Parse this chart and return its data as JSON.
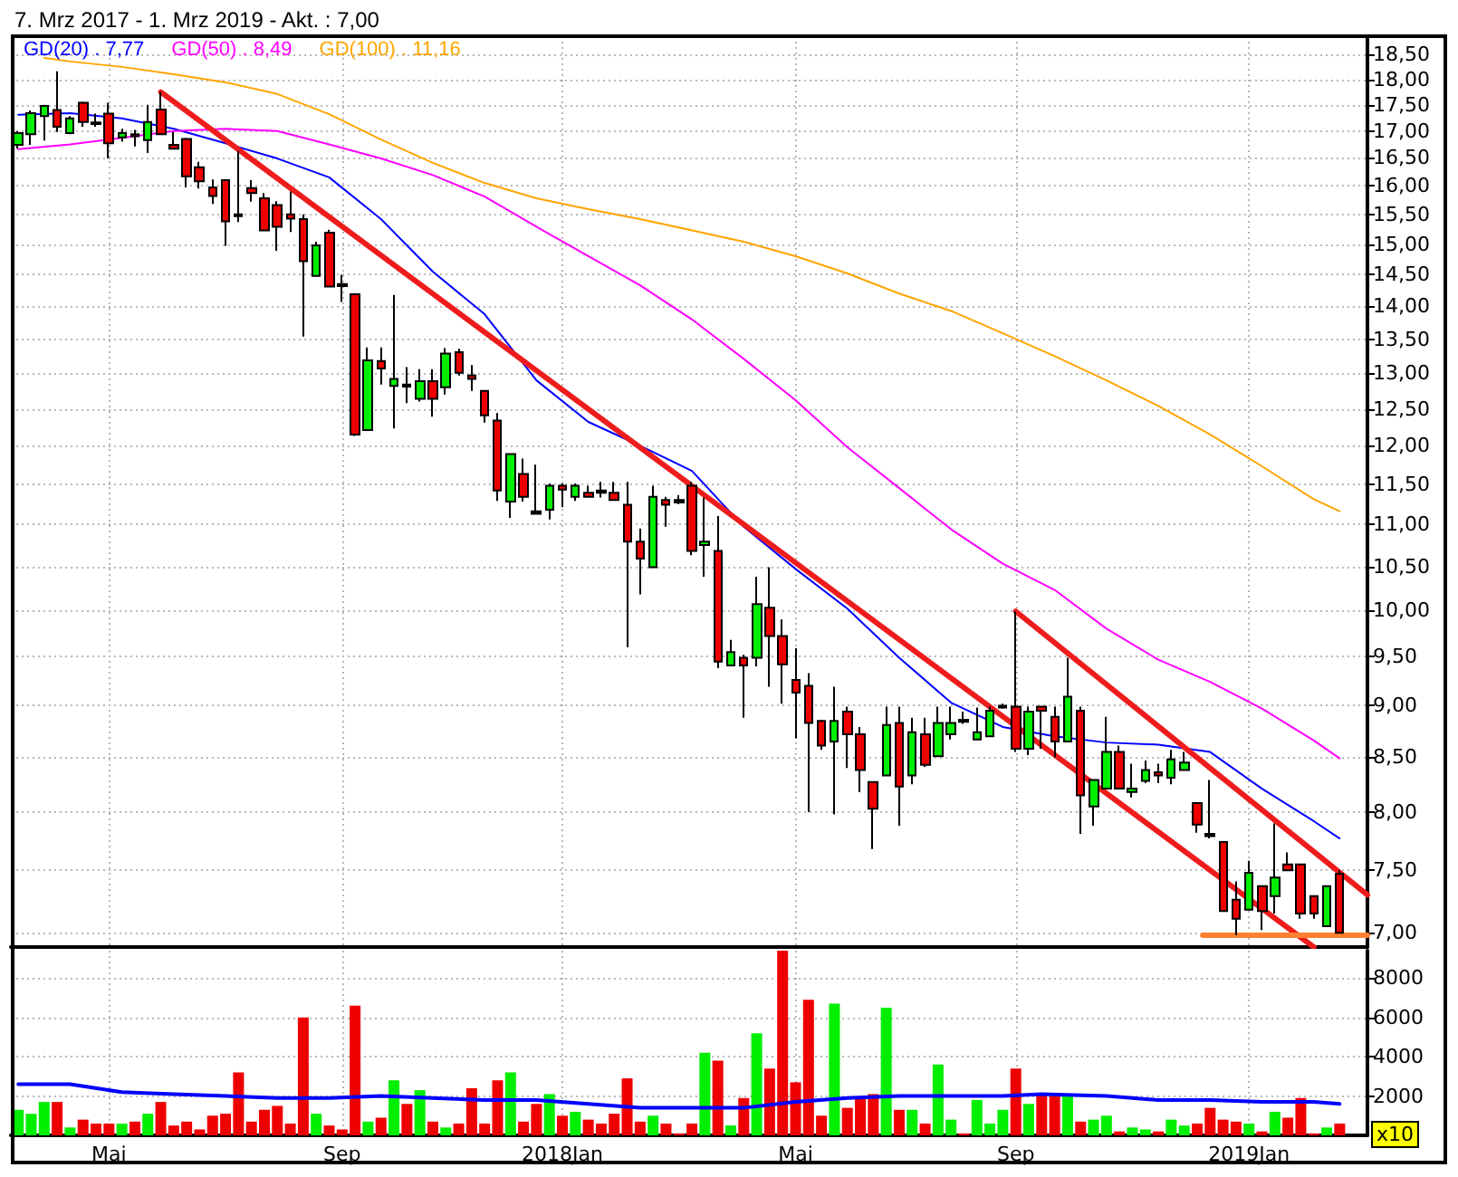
{
  "chart_data": [
    {
      "type": "candlestick",
      "title": "7. Mrz 2017 - 1. Mrz 2019 - Akt. : 7,00",
      "x": [
        "2017-03-13",
        "2017-03-20",
        "2017-03-27",
        "2017-04-03",
        "2017-04-10",
        "2017-04-17",
        "2017-04-24",
        "2017-05-01",
        "2017-05-08",
        "2017-05-15",
        "2017-05-22",
        "2017-05-29",
        "2017-06-05",
        "2017-06-12",
        "2017-06-19",
        "2017-06-26",
        "2017-07-03",
        "2017-07-10",
        "2017-07-17",
        "2017-07-24",
        "2017-07-31",
        "2017-08-07",
        "2017-08-14",
        "2017-08-21",
        "2017-08-28",
        "2017-09-04",
        "2017-09-11",
        "2017-09-18",
        "2017-09-25",
        "2017-10-02",
        "2017-10-09",
        "2017-10-16",
        "2017-10-23",
        "2017-10-30",
        "2017-11-06",
        "2017-11-13",
        "2017-11-20",
        "2017-11-27",
        "2017-12-04",
        "2017-12-11",
        "2017-12-18",
        "2017-12-25",
        "2018-01-01",
        "2018-01-08",
        "2018-01-15",
        "2018-01-22",
        "2018-01-29",
        "2018-02-05",
        "2018-02-12",
        "2018-02-19",
        "2018-02-26",
        "2018-03-05",
        "2018-03-12",
        "2018-03-19",
        "2018-03-26",
        "2018-04-02",
        "2018-04-09",
        "2018-04-16",
        "2018-04-23",
        "2018-04-30",
        "2018-05-07",
        "2018-05-14",
        "2018-05-21",
        "2018-05-28",
        "2018-06-04",
        "2018-06-11",
        "2018-06-18",
        "2018-06-25",
        "2018-07-02",
        "2018-07-09",
        "2018-07-16",
        "2018-07-23",
        "2018-07-30",
        "2018-08-06",
        "2018-08-13",
        "2018-08-20",
        "2018-08-27",
        "2018-09-03",
        "2018-09-10",
        "2018-09-17",
        "2018-09-24",
        "2018-10-01",
        "2018-10-08",
        "2018-10-15",
        "2018-10-22",
        "2018-10-29",
        "2018-11-05",
        "2018-11-12",
        "2018-11-19",
        "2018-11-26",
        "2018-12-03",
        "2018-12-10",
        "2018-12-17",
        "2018-12-24",
        "2018-12-31",
        "2019-01-07",
        "2019-01-14",
        "2019-01-21",
        "2019-01-28",
        "2019-02-04",
        "2019-02-11",
        "2019-02-18",
        "2019-02-25"
      ],
      "ohlc": [
        [
          16.74,
          17.0,
          16.67,
          16.96
        ],
        [
          16.94,
          17.39,
          16.74,
          17.34
        ],
        [
          17.28,
          17.5,
          16.82,
          17.48
        ],
        [
          17.4,
          18.16,
          16.98,
          17.08
        ],
        [
          16.96,
          17.28,
          16.94,
          17.24
        ],
        [
          17.54,
          17.56,
          17.08,
          17.17
        ],
        [
          17.16,
          17.33,
          17.08,
          17.13
        ],
        [
          17.33,
          17.54,
          16.49,
          16.77
        ],
        [
          16.88,
          17.04,
          16.8,
          16.96
        ],
        [
          16.94,
          17.02,
          16.71,
          16.9
        ],
        [
          16.83,
          17.5,
          16.59,
          17.17
        ],
        [
          17.41,
          17.75,
          16.94,
          16.94
        ],
        [
          16.74,
          16.98,
          16.67,
          16.67
        ],
        [
          16.85,
          16.87,
          15.97,
          16.17
        ],
        [
          16.33,
          16.43,
          15.95,
          16.08
        ],
        [
          15.97,
          16.11,
          15.68,
          15.82
        ],
        [
          16.1,
          16.1,
          14.97,
          15.38
        ],
        [
          15.5,
          16.63,
          15.37,
          15.47
        ],
        [
          15.96,
          16.1,
          15.72,
          15.87
        ],
        [
          15.78,
          15.87,
          15.23,
          15.23
        ],
        [
          15.66,
          15.73,
          14.89,
          15.29
        ],
        [
          15.5,
          15.9,
          15.2,
          15.43
        ],
        [
          15.42,
          15.5,
          13.54,
          14.72
        ],
        [
          14.48,
          15.04,
          14.47,
          14.98
        ],
        [
          15.19,
          15.24,
          14.3,
          14.31
        ],
        [
          14.35,
          14.5,
          14.07,
          14.32
        ],
        [
          14.19,
          14.19,
          12.13,
          12.15
        ],
        [
          12.21,
          13.38,
          12.21,
          13.19
        ],
        [
          13.18,
          13.38,
          12.84,
          13.07
        ],
        [
          12.82,
          14.18,
          12.23,
          12.92
        ],
        [
          12.84,
          13.09,
          12.58,
          12.81
        ],
        [
          12.64,
          13.06,
          12.6,
          12.89
        ],
        [
          12.89,
          13.06,
          12.39,
          12.64
        ],
        [
          12.8,
          13.37,
          12.7,
          13.29
        ],
        [
          13.31,
          13.36,
          12.97,
          13.01
        ],
        [
          12.97,
          13.12,
          12.75,
          12.92
        ],
        [
          12.75,
          12.75,
          12.31,
          12.41
        ],
        [
          12.34,
          12.44,
          11.29,
          11.42
        ],
        [
          11.28,
          11.89,
          11.08,
          11.89
        ],
        [
          11.63,
          11.83,
          11.28,
          11.34
        ],
        [
          11.16,
          11.75,
          11.12,
          11.13
        ],
        [
          11.18,
          11.51,
          11.06,
          11.48
        ],
        [
          11.48,
          11.51,
          11.21,
          11.43
        ],
        [
          11.34,
          11.51,
          11.29,
          11.48
        ],
        [
          11.39,
          11.48,
          11.33,
          11.34
        ],
        [
          11.42,
          11.53,
          11.33,
          11.39
        ],
        [
          11.39,
          11.53,
          11.3,
          11.3
        ],
        [
          11.24,
          11.53,
          9.6,
          10.79
        ],
        [
          10.79,
          10.95,
          10.18,
          10.59
        ],
        [
          10.49,
          11.48,
          10.49,
          11.34
        ],
        [
          11.3,
          11.34,
          10.97,
          11.24
        ],
        [
          11.3,
          11.36,
          11.25,
          11.27
        ],
        [
          11.48,
          11.53,
          10.63,
          10.68
        ],
        [
          10.75,
          11.33,
          10.38,
          10.79
        ],
        [
          10.68,
          11.1,
          9.38,
          9.45
        ],
        [
          9.41,
          9.68,
          9.41,
          9.55
        ],
        [
          9.49,
          9.52,
          8.88,
          9.41
        ],
        [
          9.49,
          10.38,
          9.4,
          10.07
        ],
        [
          10.03,
          10.49,
          9.19,
          9.72
        ],
        [
          9.72,
          9.9,
          9.02,
          9.42
        ],
        [
          9.26,
          9.59,
          8.68,
          9.13
        ],
        [
          9.2,
          9.33,
          8.0,
          8.83
        ],
        [
          8.85,
          8.86,
          8.57,
          8.61
        ],
        [
          8.65,
          9.19,
          7.98,
          8.85
        ],
        [
          8.94,
          8.99,
          8.4,
          8.72
        ],
        [
          8.72,
          8.79,
          8.18,
          8.38
        ],
        [
          8.27,
          8.27,
          7.68,
          8.03
        ],
        [
          8.33,
          8.99,
          8.33,
          8.81
        ],
        [
          8.83,
          8.99,
          7.88,
          8.23
        ],
        [
          8.33,
          8.88,
          8.25,
          8.74
        ],
        [
          8.72,
          8.88,
          8.41,
          8.43
        ],
        [
          8.51,
          8.99,
          8.51,
          8.83
        ],
        [
          8.72,
          8.99,
          8.67,
          8.83
        ],
        [
          8.86,
          8.94,
          8.82,
          8.84
        ],
        [
          8.67,
          8.98,
          8.67,
          8.74
        ],
        [
          8.7,
          8.99,
          8.7,
          8.95
        ],
        [
          8.98,
          9.02,
          8.97,
          9.0
        ],
        [
          8.99,
          9.99,
          8.55,
          8.58
        ],
        [
          8.58,
          8.99,
          8.52,
          8.94
        ],
        [
          8.99,
          8.99,
          8.58,
          8.95
        ],
        [
          8.89,
          8.99,
          8.5,
          8.65
        ],
        [
          8.65,
          9.49,
          8.65,
          9.09
        ],
        [
          8.95,
          8.99,
          7.81,
          8.15
        ],
        [
          8.05,
          8.29,
          7.88,
          8.29
        ],
        [
          8.21,
          8.89,
          8.21,
          8.55
        ],
        [
          8.55,
          8.61,
          8.21,
          8.21
        ],
        [
          8.18,
          8.44,
          8.13,
          8.21
        ],
        [
          8.28,
          8.47,
          8.26,
          8.38
        ],
        [
          8.36,
          8.44,
          8.26,
          8.33
        ],
        [
          8.31,
          8.57,
          8.25,
          8.48
        ],
        [
          8.38,
          8.55,
          8.38,
          8.45
        ],
        [
          8.08,
          8.08,
          7.82,
          7.89
        ],
        [
          7.81,
          8.29,
          7.77,
          7.79
        ],
        [
          7.74,
          7.74,
          7.17,
          7.17
        ],
        [
          7.26,
          7.41,
          6.98,
          7.11
        ],
        [
          7.18,
          7.58,
          7.18,
          7.48
        ],
        [
          7.37,
          7.37,
          7.02,
          7.17
        ],
        [
          7.29,
          7.9,
          7.15,
          7.44
        ],
        [
          7.55,
          7.65,
          7.5,
          7.5
        ],
        [
          7.55,
          7.55,
          7.11,
          7.15
        ],
        [
          7.29,
          7.29,
          7.11,
          7.15
        ],
        [
          7.05,
          7.37,
          7.05,
          7.37
        ],
        [
          7.47,
          7.5,
          7.0,
          7.0
        ]
      ],
      "colors": [
        "#00ee00",
        "#00ee00",
        "#00ee00",
        "#ee0000",
        "#00ee00",
        "#ee0000",
        "#000000",
        "#ee0000",
        "#00ee00",
        "#ee0000",
        "#00ee00",
        "#ee0000",
        "#ee0000",
        "#ee0000",
        "#ee0000",
        "#ee0000",
        "#ee0000",
        "#000000",
        "#ee0000",
        "#ee0000",
        "#ee0000",
        "#ee0000",
        "#ee0000",
        "#00ee00",
        "#ee0000",
        "#000000",
        "#ee0000",
        "#00ee00",
        "#ee0000",
        "#00ee00",
        "#000000",
        "#00ee00",
        "#ee0000",
        "#00ee00",
        "#ee0000",
        "#ee0000",
        "#ee0000",
        "#ee0000",
        "#00ee00",
        "#ee0000",
        "#000000",
        "#00ee00",
        "#ee0000",
        "#00ee00",
        "#ee0000",
        "#000000",
        "#ee0000",
        "#ee0000",
        "#ee0000",
        "#00ee00",
        "#ee0000",
        "#000000",
        "#ee0000",
        "#00ee00",
        "#ee0000",
        "#00ee00",
        "#ee0000",
        "#00ee00",
        "#ee0000",
        "#ee0000",
        "#ee0000",
        "#ee0000",
        "#ee0000",
        "#00ee00",
        "#ee0000",
        "#ee0000",
        "#ee0000",
        "#00ee00",
        "#ee0000",
        "#00ee00",
        "#ee0000",
        "#00ee00",
        "#00ee00",
        "#000000",
        "#00ee00",
        "#00ee00",
        "#000000",
        "#ee0000",
        "#00ee00",
        "#ee0000",
        "#ee0000",
        "#00ee00",
        "#ee0000",
        "#00ee00",
        "#00ee00",
        "#ee0000",
        "#00ee00",
        "#00ee00",
        "#ee0000",
        "#00ee00",
        "#00ee00",
        "#ee0000",
        "#000000",
        "#ee0000",
        "#ee0000",
        "#00ee00",
        "#ee0000",
        "#00ee00",
        "#ee0000",
        "#ee0000",
        "#ee0000",
        "#00ee00",
        "#ee0000"
      ],
      "series": [
        {
          "type": "line",
          "name": "GD(20) . 7,77",
          "color": "#0000ff",
          "x": [
            "2017-03-13",
            "2017-04-10",
            "2017-05-08",
            "2017-06-05",
            "2017-07-03",
            "2017-07-31",
            "2017-08-28",
            "2017-09-25",
            "2017-10-23",
            "2017-11-20",
            "2017-12-18",
            "2018-01-15",
            "2018-02-12",
            "2018-03-12",
            "2018-04-09",
            "2018-05-07",
            "2018-06-04",
            "2018-07-02",
            "2018-07-30",
            "2018-08-27",
            "2018-09-24",
            "2018-10-22",
            "2018-11-19",
            "2018-12-17",
            "2019-01-14",
            "2019-02-11",
            "2019-02-25"
          ],
          "values": [
            17.31,
            17.34,
            17.24,
            17.04,
            16.77,
            16.49,
            16.15,
            15.42,
            14.55,
            13.88,
            12.9,
            12.32,
            12.0,
            11.67,
            10.97,
            10.47,
            10.02,
            9.49,
            9.03,
            8.79,
            8.7,
            8.64,
            8.62,
            8.55,
            8.21,
            7.92,
            7.77
          ]
        },
        {
          "type": "line",
          "name": "GD(50) . 8,49",
          "color": "#ff00ff",
          "x": [
            "2017-03-13",
            "2017-04-10",
            "2017-05-08",
            "2017-06-05",
            "2017-07-03",
            "2017-07-31",
            "2017-08-28",
            "2017-09-25",
            "2017-10-23",
            "2017-11-20",
            "2017-12-18",
            "2018-01-15",
            "2018-02-12",
            "2018-03-12",
            "2018-04-09",
            "2018-05-07",
            "2018-06-04",
            "2018-07-02",
            "2018-07-30",
            "2018-08-27",
            "2018-09-24",
            "2018-10-22",
            "2018-11-19",
            "2018-12-17",
            "2019-01-14",
            "2019-02-11",
            "2019-02-25"
          ],
          "values": [
            16.66,
            16.75,
            16.87,
            17.0,
            17.04,
            17.0,
            16.75,
            16.49,
            16.19,
            15.81,
            15.29,
            14.8,
            14.33,
            13.8,
            13.21,
            12.62,
            11.98,
            11.45,
            10.94,
            10.53,
            10.23,
            9.8,
            9.47,
            9.24,
            8.97,
            8.66,
            8.49
          ]
        },
        {
          "type": "line",
          "name": "GD(100) . 11,16",
          "color": "#ffa500",
          "x": [
            "2017-03-27",
            "2017-04-10",
            "2017-05-08",
            "2017-06-05",
            "2017-07-03",
            "2017-07-31",
            "2017-08-28",
            "2017-09-25",
            "2017-10-23",
            "2017-11-20",
            "2017-12-18",
            "2018-01-15",
            "2018-02-12",
            "2018-03-12",
            "2018-04-09",
            "2018-05-07",
            "2018-06-04",
            "2018-07-02",
            "2018-07-30",
            "2018-08-27",
            "2018-09-24",
            "2018-10-22",
            "2018-11-19",
            "2018-12-17",
            "2019-01-14",
            "2019-02-11",
            "2019-02-25"
          ],
          "values": [
            18.43,
            18.36,
            18.25,
            18.1,
            17.94,
            17.71,
            17.32,
            16.84,
            16.41,
            16.05,
            15.78,
            15.59,
            15.42,
            15.23,
            15.04,
            14.8,
            14.52,
            14.2,
            13.93,
            13.59,
            13.25,
            12.9,
            12.54,
            12.15,
            11.73,
            11.31,
            11.16
          ]
        },
        {
          "type": "line",
          "color": "#ee1c1c",
          "x": [
            "2017-05-29",
            "2019-02-11"
          ],
          "values": [
            17.75,
            6.89
          ]
        },
        {
          "type": "line",
          "color": "#ee1c1c",
          "x": [
            "2018-09-03",
            "2019-03-12"
          ],
          "values": [
            9.99,
            7.3
          ]
        },
        {
          "type": "line",
          "color": "#ff8030",
          "x": [
            "2018-12-13",
            "2019-03-12"
          ],
          "values": [
            6.98,
            6.98
          ]
        }
      ],
      "xlim": [
        "2017-03-09",
        "2019-03-12"
      ],
      "xticks": [
        {
          "value": "2017-05-01",
          "label": null
        },
        {
          "value": "2017-09-04",
          "label": null
        },
        {
          "value": "2018-01-01",
          "label": null
        },
        {
          "value": "2018-05-07",
          "label": null
        },
        {
          "value": "2018-09-03",
          "label": null
        },
        {
          "value": "2019-01-07",
          "label": null
        }
      ],
      "ylim": [
        6.89,
        18.88
      ],
      "yticks": [
        {
          "value": 7,
          "label": "7,00"
        },
        {
          "value": 7.5,
          "label": "7,50"
        },
        {
          "value": 8,
          "label": "8,00"
        },
        {
          "value": 8.5,
          "label": "8,50"
        },
        {
          "value": 9,
          "label": "9,00"
        },
        {
          "value": 9.5,
          "label": "9,50"
        },
        {
          "value": 10,
          "label": "10,00"
        },
        {
          "value": 10.5,
          "label": "10,50"
        },
        {
          "value": 11,
          "label": "11,00"
        },
        {
          "value": 11.5,
          "label": "11,50"
        },
        {
          "value": 12,
          "label": "12,00"
        },
        {
          "value": 12.5,
          "label": "12,50"
        },
        {
          "value": 13,
          "label": "13,00"
        },
        {
          "value": 13.5,
          "label": "13,50"
        },
        {
          "value": 14,
          "label": "14,00"
        },
        {
          "value": 14.5,
          "label": "14,50"
        },
        {
          "value": 15,
          "label": "15,00"
        },
        {
          "value": 15.5,
          "label": "15,50"
        },
        {
          "value": 16,
          "label": "16,00"
        },
        {
          "value": 16.5,
          "label": "16,50"
        },
        {
          "value": 17,
          "label": "17,00"
        },
        {
          "value": 17.5,
          "label": "17,50"
        },
        {
          "value": 18,
          "label": "18,00"
        },
        {
          "value": 18.5,
          "label": "18,50"
        }
      ],
      "log": true,
      "grid": true,
      "legend": "top left",
      "tick_labels": "y"
    },
    {
      "type": "bar",
      "x": [
        "2017-03-13",
        "2017-03-20",
        "2017-03-27",
        "2017-04-03",
        "2017-04-10",
        "2017-04-17",
        "2017-04-24",
        "2017-05-01",
        "2017-05-08",
        "2017-05-15",
        "2017-05-22",
        "2017-05-29",
        "2017-06-05",
        "2017-06-12",
        "2017-06-19",
        "2017-06-26",
        "2017-07-03",
        "2017-07-10",
        "2017-07-17",
        "2017-07-24",
        "2017-07-31",
        "2017-08-07",
        "2017-08-14",
        "2017-08-21",
        "2017-08-28",
        "2017-09-04",
        "2017-09-11",
        "2017-09-18",
        "2017-09-25",
        "2017-10-02",
        "2017-10-09",
        "2017-10-16",
        "2017-10-23",
        "2017-10-30",
        "2017-11-06",
        "2017-11-13",
        "2017-11-20",
        "2017-11-27",
        "2017-12-04",
        "2017-12-11",
        "2017-12-18",
        "2017-12-25",
        "2018-01-01",
        "2018-01-08",
        "2018-01-15",
        "2018-01-22",
        "2018-01-29",
        "2018-02-05",
        "2018-02-12",
        "2018-02-19",
        "2018-02-26",
        "2018-03-05",
        "2018-03-12",
        "2018-03-19",
        "2018-03-26",
        "2018-04-02",
        "2018-04-09",
        "2018-04-16",
        "2018-04-23",
        "2018-04-30",
        "2018-05-07",
        "2018-05-14",
        "2018-05-21",
        "2018-05-28",
        "2018-06-04",
        "2018-06-11",
        "2018-06-18",
        "2018-06-25",
        "2018-07-02",
        "2018-07-09",
        "2018-07-16",
        "2018-07-23",
        "2018-07-30",
        "2018-08-06",
        "2018-08-13",
        "2018-08-20",
        "2018-08-27",
        "2018-09-03",
        "2018-09-10",
        "2018-09-17",
        "2018-09-24",
        "2018-10-01",
        "2018-10-08",
        "2018-10-15",
        "2018-10-22",
        "2018-10-29",
        "2018-11-05",
        "2018-11-12",
        "2018-11-19",
        "2018-11-26",
        "2018-12-03",
        "2018-12-10",
        "2018-12-17",
        "2018-12-24",
        "2018-12-31",
        "2019-01-07",
        "2019-01-14",
        "2019-01-21",
        "2019-01-28",
        "2019-02-04",
        "2019-02-11",
        "2019-02-18",
        "2019-02-25"
      ],
      "series": [
        {
          "values": [
            1300,
            1100,
            1700,
            1700,
            400,
            800,
            600,
            600,
            600,
            700,
            1100,
            1700,
            500,
            700,
            300,
            1000,
            1100,
            3200,
            700,
            1300,
            1500,
            600,
            6000,
            1100,
            500,
            300,
            6600,
            700,
            900,
            2800,
            1600,
            2300,
            700,
            400,
            600,
            2400,
            600,
            2800,
            3200,
            700,
            1600,
            2100,
            1000,
            1200,
            800,
            600,
            1100,
            2900,
            700,
            1000,
            600,
            100,
            600,
            4200,
            3800,
            500,
            1900,
            5200,
            3400,
            9400,
            2700,
            6900,
            1000,
            6700,
            1400,
            1900,
            2100,
            6500,
            1300,
            1300,
            600,
            3600,
            800,
            100,
            1800,
            600,
            1300,
            3400,
            1600,
            2100,
            2000,
            2000,
            700,
            800,
            1000,
            200,
            400,
            300,
            200,
            800,
            500,
            600,
            1400,
            800,
            700,
            600,
            200,
            1200,
            900,
            1900,
            100,
            400,
            600
          ],
          "colors": [
            "#00ee00",
            "#00ee00",
            "#00ee00",
            "#ee0000",
            "#00ee00",
            "#ee0000",
            "#ee0000",
            "#ee0000",
            "#00ee00",
            "#ee0000",
            "#00ee00",
            "#ee0000",
            "#ee0000",
            "#ee0000",
            "#ee0000",
            "#ee0000",
            "#ee0000",
            "#ee0000",
            "#ee0000",
            "#ee0000",
            "#ee0000",
            "#ee0000",
            "#ee0000",
            "#00ee00",
            "#ee0000",
            "#ee0000",
            "#ee0000",
            "#00ee00",
            "#ee0000",
            "#00ee00",
            "#ee0000",
            "#00ee00",
            "#ee0000",
            "#00ee00",
            "#ee0000",
            "#ee0000",
            "#ee0000",
            "#ee0000",
            "#00ee00",
            "#ee0000",
            "#ee0000",
            "#00ee00",
            "#ee0000",
            "#00ee00",
            "#ee0000",
            "#ee0000",
            "#ee0000",
            "#ee0000",
            "#ee0000",
            "#00ee00",
            "#ee0000",
            "#ee0000",
            "#ee0000",
            "#00ee00",
            "#ee0000",
            "#00ee00",
            "#ee0000",
            "#00ee00",
            "#ee0000",
            "#ee0000",
            "#ee0000",
            "#ee0000",
            "#ee0000",
            "#00ee00",
            "#ee0000",
            "#ee0000",
            "#ee0000",
            "#00ee00",
            "#ee0000",
            "#00ee00",
            "#ee0000",
            "#00ee00",
            "#00ee00",
            "#ee0000",
            "#00ee00",
            "#00ee00",
            "#00ee00",
            "#ee0000",
            "#00ee00",
            "#ee0000",
            "#ee0000",
            "#00ee00",
            "#ee0000",
            "#00ee00",
            "#00ee00",
            "#ee0000",
            "#00ee00",
            "#00ee00",
            "#ee0000",
            "#00ee00",
            "#00ee00",
            "#ee0000",
            "#ee0000",
            "#ee0000",
            "#ee0000",
            "#00ee00",
            "#ee0000",
            "#00ee00",
            "#ee0000",
            "#ee0000",
            "#ee0000",
            "#00ee00",
            "#ee0000"
          ]
        },
        {
          "type": "line",
          "color": "#0000ff",
          "x": [
            "2017-03-13",
            "2017-04-10",
            "2017-05-08",
            "2017-06-05",
            "2017-07-03",
            "2017-07-31",
            "2017-08-28",
            "2017-09-25",
            "2017-10-23",
            "2017-11-20",
            "2017-12-18",
            "2018-01-15",
            "2018-02-12",
            "2018-03-12",
            "2018-04-09",
            "2018-05-07",
            "2018-06-04",
            "2018-07-02",
            "2018-07-30",
            "2018-08-27",
            "2018-09-17",
            "2018-10-22",
            "2018-11-19",
            "2018-12-17",
            "2019-01-14",
            "2019-02-11",
            "2019-02-25"
          ],
          "values": [
            2600,
            2600,
            2200,
            2100,
            2000,
            1900,
            1900,
            2000,
            1900,
            1800,
            1800,
            1600,
            1400,
            1400,
            1400,
            1700,
            1900,
            2000,
            2000,
            2000,
            2100,
            2000,
            1800,
            1800,
            1700,
            1700,
            1600
          ]
        }
      ],
      "xlim": [
        "2017-03-09",
        "2019-03-12"
      ],
      "xticks": [
        {
          "value": "2017-05-01",
          "label": "Mai"
        },
        {
          "value": "2017-09-04",
          "label": "Sep"
        },
        {
          "value": "2018-01-01",
          "label": "2018Jan"
        },
        {
          "value": "2018-05-07",
          "label": "Mai"
        },
        {
          "value": "2018-09-03",
          "label": "Sep"
        },
        {
          "value": "2019-01-07",
          "label": "2019Jan"
        }
      ],
      "ylim": [
        0,
        9400
      ],
      "yticks": [
        2000,
        4000,
        6000,
        8000
      ],
      "grid": true,
      "annotations": [
        "x10"
      ]
    }
  ]
}
